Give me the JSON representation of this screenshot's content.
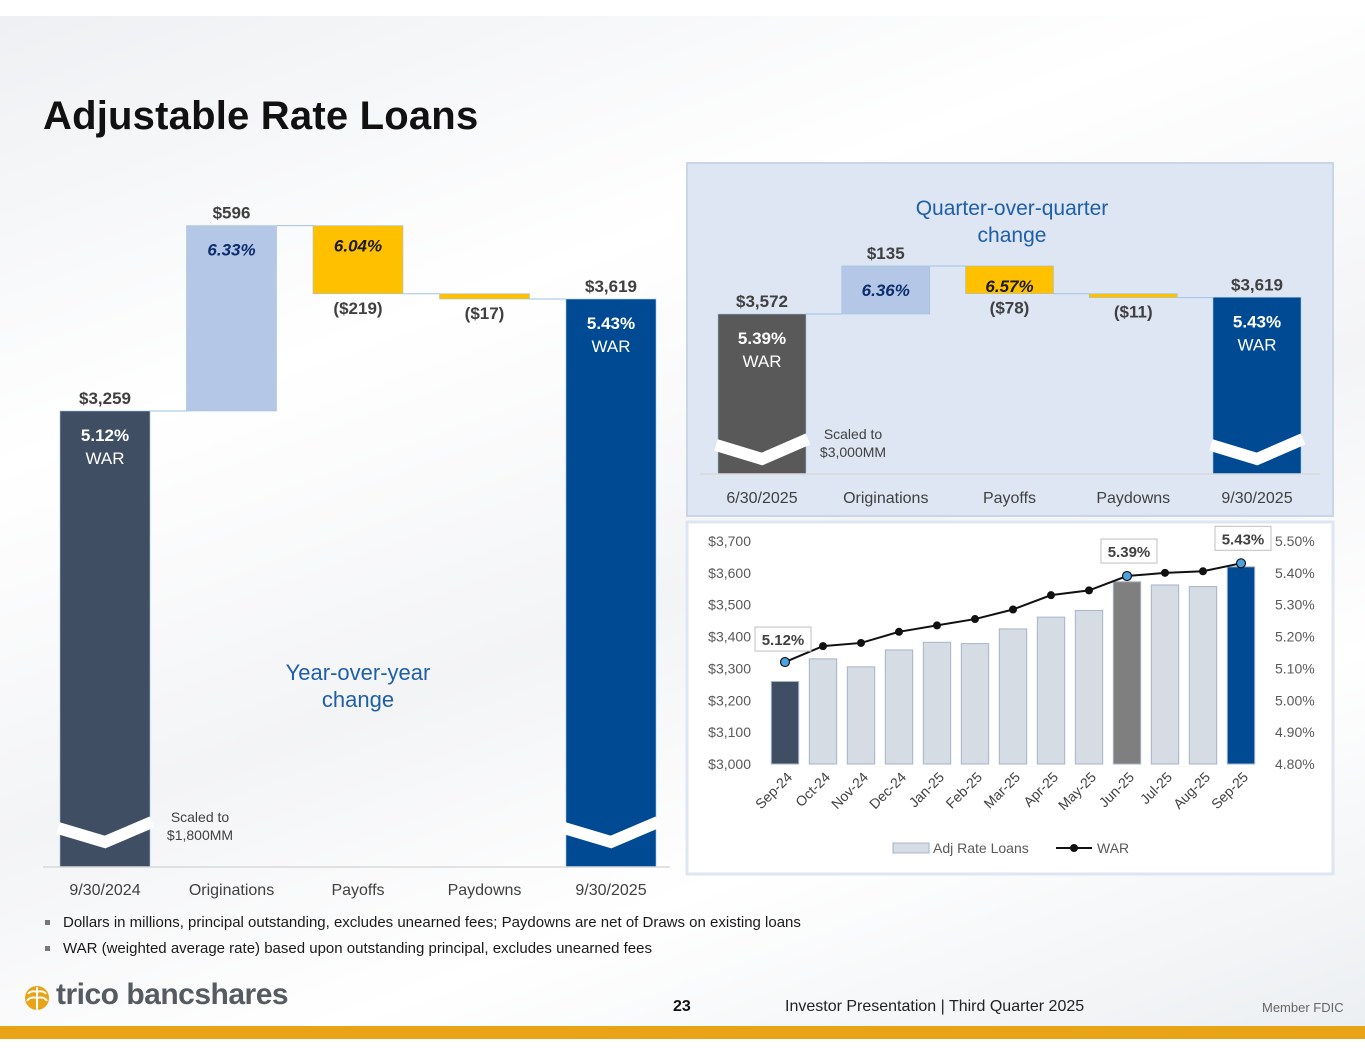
{
  "title": "Adjustable Rate Loans",
  "yoy": {
    "caption_line1": "Year-over-year",
    "caption_line2": "change",
    "scaled_line1": "Scaled to",
    "scaled_line2": "$1,800MM",
    "categories": [
      "9/30/2024",
      "Originations",
      "Payoffs",
      "Paydowns",
      "9/30/2025"
    ],
    "bars": [
      {
        "kind": "total",
        "value": 3259,
        "label": "$3,259",
        "rate": "5.12%",
        "war": "WAR",
        "color": "#3f4e63"
      },
      {
        "kind": "up",
        "value": 596,
        "label": "$596",
        "rate": "6.33%",
        "color": "#b4c7e7"
      },
      {
        "kind": "down",
        "value": -219,
        "label": "($219)",
        "rate": "6.04%",
        "color": "#ffc000"
      },
      {
        "kind": "down",
        "value": -17,
        "label": "($17)",
        "rate": "",
        "color": "#ffc000"
      },
      {
        "kind": "total",
        "value": 3619,
        "label": "$3,619",
        "rate": "5.43%",
        "war": "WAR",
        "color": "#004a93"
      }
    ]
  },
  "qoq": {
    "caption_line1": "Quarter-over-quarter",
    "caption_line2": "change",
    "scaled_line1": "Scaled to",
    "scaled_line2": "$3,000MM",
    "categories": [
      "6/30/2025",
      "Originations",
      "Payoffs",
      "Paydowns",
      "9/30/2025"
    ],
    "bars": [
      {
        "kind": "total",
        "value": 3572,
        "label": "$3,572",
        "rate": "5.39%",
        "war": "WAR",
        "color": "#595959"
      },
      {
        "kind": "up",
        "value": 135,
        "label": "$135",
        "rate": "6.36%",
        "color": "#b4c7e7"
      },
      {
        "kind": "down",
        "value": -78,
        "label": "($78)",
        "rate": "6.57%",
        "color": "#ffc000"
      },
      {
        "kind": "down",
        "value": -11,
        "label": "($11)",
        "rate": "",
        "color": "#ffc000"
      },
      {
        "kind": "total",
        "value": 3619,
        "label": "$3,619",
        "rate": "5.43%",
        "war": "WAR",
        "color": "#004a93"
      }
    ]
  },
  "chart_data": [
    {
      "type": "bar",
      "title": "Year-over-year change",
      "categories": [
        "9/30/2024",
        "Originations",
        "Payoffs",
        "Paydowns",
        "9/30/2025"
      ],
      "values": [
        3259,
        596,
        -219,
        -17,
        3619
      ],
      "rates": [
        "5.12%",
        "6.33%",
        "6.04%",
        "",
        "5.43%"
      ]
    },
    {
      "type": "bar",
      "title": "Quarter-over-quarter change",
      "categories": [
        "6/30/2025",
        "Originations",
        "Payoffs",
        "Paydowns",
        "9/30/2025"
      ],
      "values": [
        3572,
        135,
        -78,
        -11,
        3619
      ],
      "rates": [
        "5.39%",
        "6.36%",
        "6.57%",
        "",
        "5.43%"
      ]
    },
    {
      "type": "bar",
      "x": [
        "Sep-24",
        "Oct-24",
        "Nov-24",
        "Dec-24",
        "Jan-25",
        "Feb-25",
        "Mar-25",
        "Apr-25",
        "May-25",
        "Jun-25",
        "Jul-25",
        "Aug-25",
        "Sep-25"
      ],
      "series": [
        {
          "name": "Adj Rate Loans",
          "values": [
            3259,
            3330,
            3305,
            3358,
            3382,
            3378,
            3424,
            3461,
            3482,
            3572,
            3562,
            3557,
            3619
          ]
        },
        {
          "name": "WAR",
          "values": [
            5.12,
            5.17,
            5.18,
            5.215,
            5.235,
            5.255,
            5.285,
            5.33,
            5.345,
            5.39,
            5.4,
            5.405,
            5.43
          ]
        }
      ],
      "ylim": [
        3000,
        3700
      ],
      "y2lim": [
        4.8,
        5.5
      ],
      "yticks": [
        "$3,000",
        "$3,100",
        "$3,200",
        "$3,300",
        "$3,400",
        "$3,500",
        "$3,600",
        "$3,700"
      ],
      "y2ticks": [
        "4.80%",
        "4.90%",
        "5.00%",
        "5.10%",
        "5.20%",
        "5.30%",
        "5.40%",
        "5.50%"
      ],
      "callouts": [
        {
          "x": "Sep-24",
          "label": "5.12%"
        },
        {
          "x": "Jun-25",
          "label": "5.39%"
        },
        {
          "x": "Sep-25",
          "label": "5.43%"
        }
      ],
      "bar_colors": {
        "Sep-24": "#3f4e63",
        "Jun-25": "#7f7f7f",
        "Sep-25": "#004a93",
        "default": "#d6dce4"
      },
      "legend": "bottom"
    }
  ],
  "notes": [
    "Dollars in millions, principal outstanding, excludes unearned fees; Paydowns are net of Draws on existing loans",
    "WAR (weighted average rate) based upon outstanding principal, excludes unearned fees"
  ],
  "footer": {
    "logo_text": "trico bancshares",
    "page_number": "23",
    "presentation": "Investor Presentation  |  Third Quarter 2025",
    "fdic": "Member FDIC"
  },
  "colors": {
    "accent": "#004a93",
    "gold": "#e8a317",
    "caption": "#1f5fa8"
  }
}
